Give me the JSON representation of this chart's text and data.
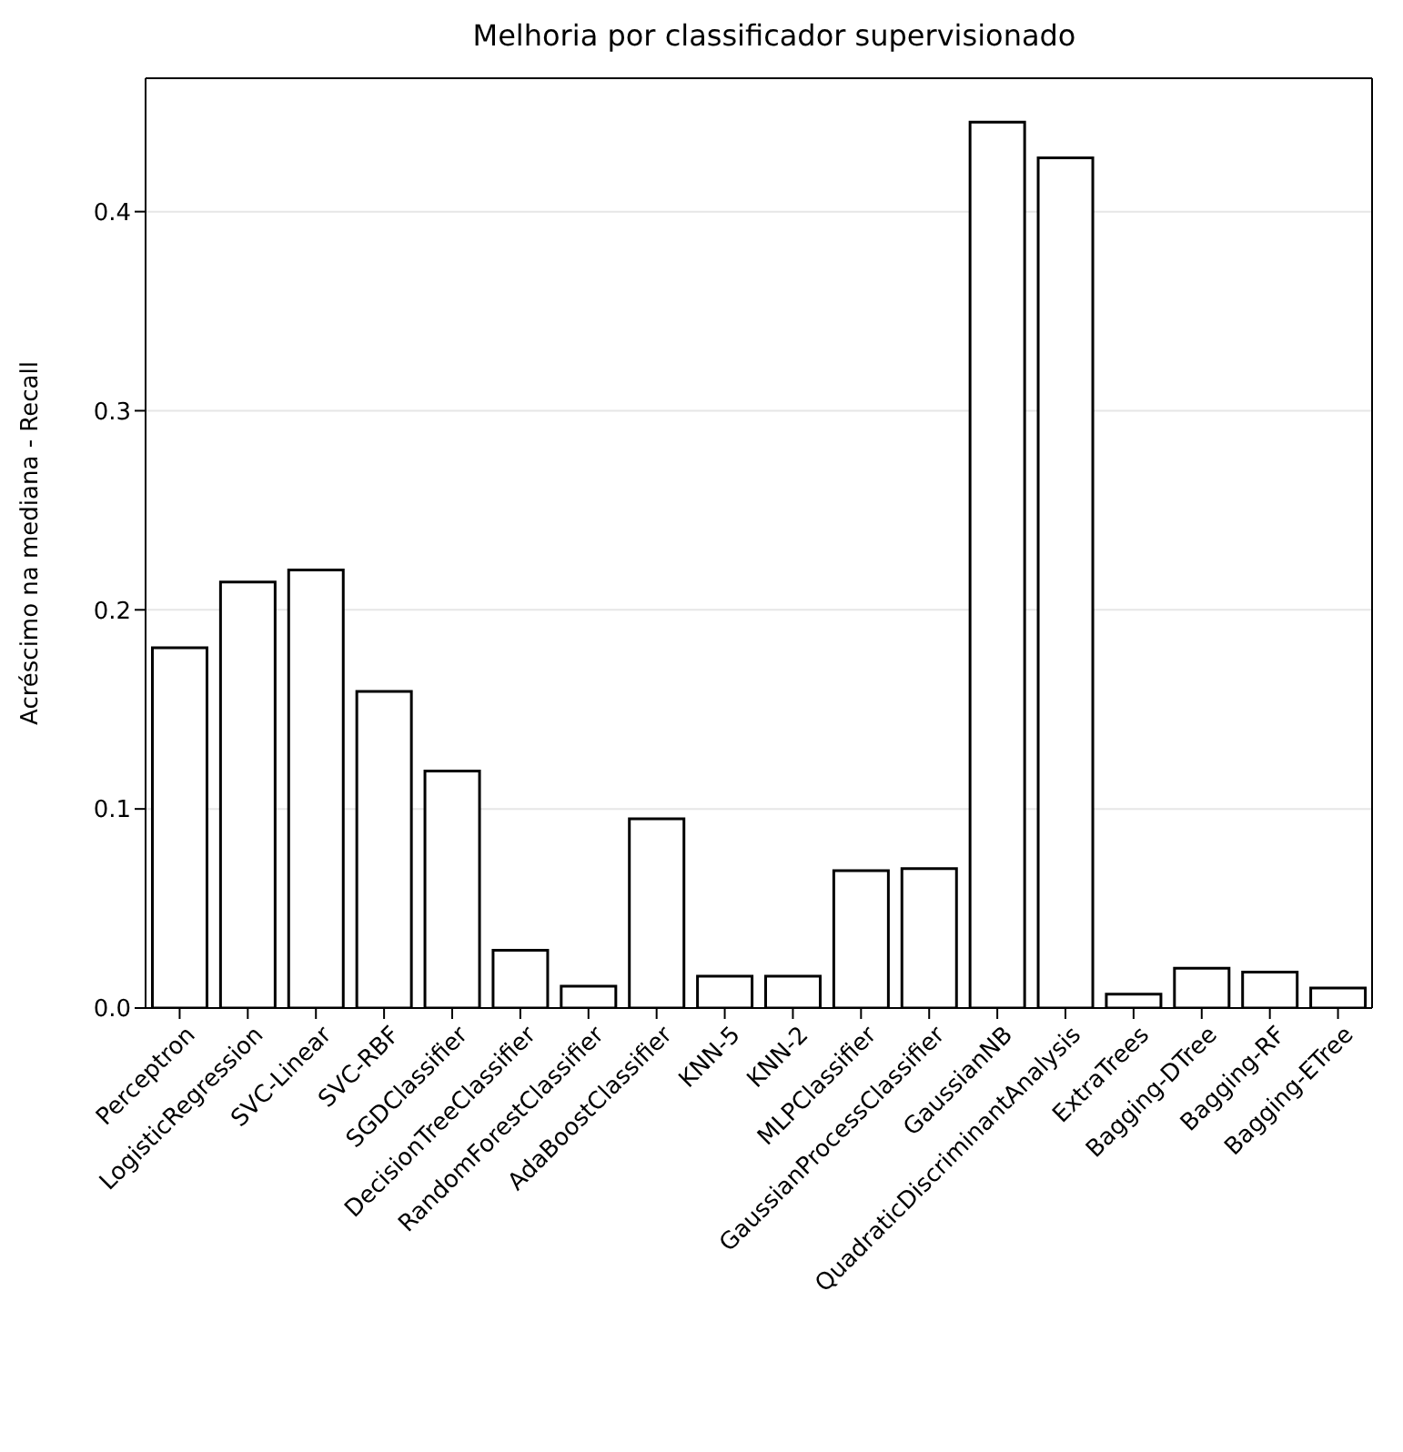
{
  "chart_data": {
    "type": "bar",
    "title": "Melhoria por classificador supervisionado",
    "ylabel": "Acréscimo na mediana - Recall",
    "categories": [
      "Perceptron",
      "LogisticRegression",
      "SVC-Linear",
      "SVC-RBF",
      "SGDClassifier",
      "DecisionTreeClassifier",
      "RandomForestClassifier",
      "AdaBoostClassifier",
      "KNN-5",
      "KNN-2",
      "MLPClassifier",
      "GaussianProcessClassifier",
      "GaussianNB",
      "QuadraticDiscriminantAnalysis",
      "ExtraTrees",
      "Bagging-DTree",
      "Bagging-RF",
      "Bagging-ETree"
    ],
    "values": [
      0.181,
      0.214,
      0.22,
      0.159,
      0.119,
      0.029,
      0.011,
      0.095,
      0.016,
      0.016,
      0.069,
      0.07,
      0.445,
      0.427,
      0.007,
      0.02,
      0.018,
      0.01
    ],
    "color": "#ffffff",
    "ylim": [
      0,
      0.467
    ],
    "yticks": [
      {
        "value": 0,
        "label": "0.0"
      },
      0.1,
      0.2,
      0.3,
      0.4
    ],
    "grid": "y"
  }
}
